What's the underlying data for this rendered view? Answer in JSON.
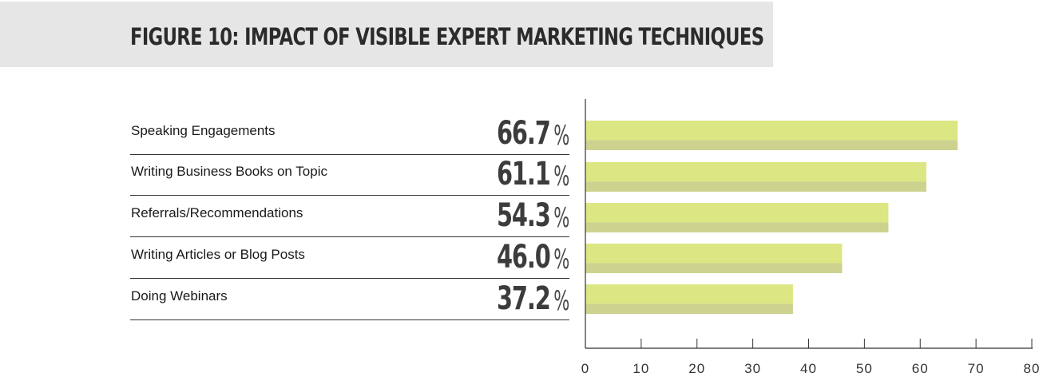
{
  "header": {
    "title": "FIGURE 10: IMPACT OF VISIBLE EXPERT MARKETING TECHNIQUES"
  },
  "chart_data": {
    "type": "bar",
    "orientation": "horizontal",
    "title": "FIGURE 10: IMPACT OF VISIBLE EXPERT MARKETING TECHNIQUES",
    "categories": [
      "Speaking Engagements",
      "Writing Business Books on Topic",
      "Referrals/Recommendations",
      "Writing Articles or Blog Posts",
      "Doing Webinars"
    ],
    "values": [
      66.7,
      61.1,
      54.3,
      46.0,
      37.2
    ],
    "value_labels": [
      "66.7",
      "61.1",
      "54.3",
      "46.0",
      "37.2"
    ],
    "value_suffix": "%",
    "xlim": [
      0,
      80
    ],
    "xticks": [
      0,
      10,
      20,
      30,
      40,
      50,
      60,
      70,
      80
    ],
    "xlabel": "",
    "ylabel": "",
    "grid": false,
    "legend": "none",
    "colors": {
      "bar_light": "#dce683",
      "bar_dark": "#cdd38f",
      "axis": "#333333"
    }
  }
}
